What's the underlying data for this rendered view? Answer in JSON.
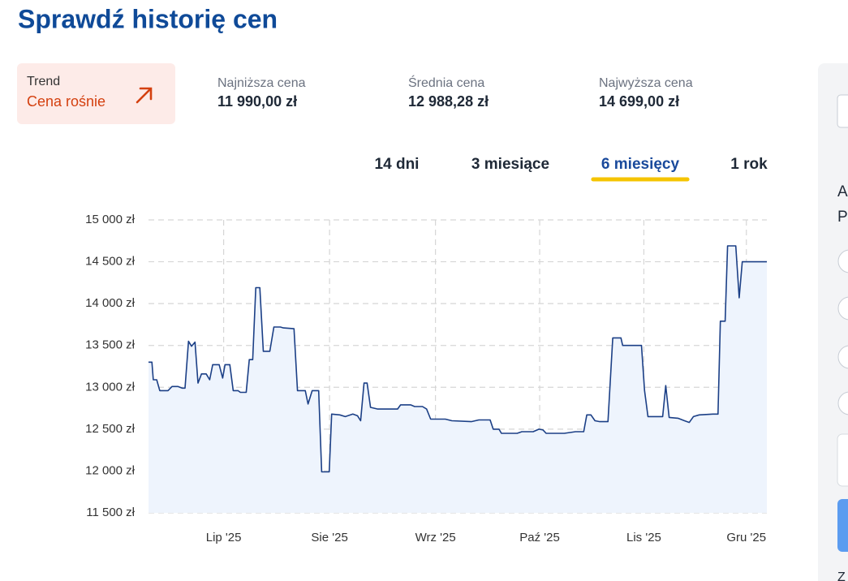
{
  "header": {
    "title": "Sprawdź historię cen"
  },
  "trend": {
    "label": "Trend",
    "value": "Cena rośnie"
  },
  "stats": [
    {
      "label": "Najniższa cena",
      "value": "11 990,00 zł"
    },
    {
      "label": "Średnia cena",
      "value": "12 988,28 zł"
    },
    {
      "label": "Najwyższa cena",
      "value": "14 699,00 zł"
    }
  ],
  "tabs": [
    "14 dni",
    "3 miesiące",
    "6 miesięcy",
    "1 rok"
  ],
  "active_tab": 2,
  "chart_data": {
    "type": "line",
    "color": "#1b3f86",
    "area_color": "#eef4fd",
    "grid": true,
    "x": [
      0,
      1,
      1.4,
      2.4,
      3.3,
      5.7,
      6.9,
      8.6,
      9.8,
      10.7,
      11.7,
      12.6,
      13.6,
      14.5,
      15.5,
      16.9,
      17.9,
      18.8,
      20.7,
      21.7,
      22.4,
      23.8,
      24.8,
      26.2,
      26.9,
      28.6,
      29.5,
      30.5,
      31.4,
      32.6,
      33.6,
      35.5,
      36.7,
      38.6,
      39.5,
      42.6,
      43.6,
      45.9,
      46.7,
      47.9,
      49.8,
      50.7,
      52.9,
      53.6,
      56,
      57.6,
      59.8,
      61.2,
      62.1,
      63.1,
      64,
      65,
      67.1,
      68.6,
      72.9,
      73.8,
      76.7,
      77.9,
      80.2,
      81.4,
      82.6,
      86.9,
      88.8,
      94.5,
      96.7,
      100,
      100.9,
      102.6,
      103.3,
      107.9,
      109.3,
      112.6,
      114.3,
      115.5,
      116.4,
      121.7,
      125,
      127.4,
      128.3,
      129.5,
      130.7,
      132.1,
      134.5,
      135.9,
      138.3,
      138.8,
      144.3,
      145.2,
      146.2,
      150.5,
      151.4,
      152.4,
      155,
      156.9,
      158.3,
      159.5,
      161.2,
      165.2,
      166.7,
      167.4,
      168.8,
      169.5,
      171.9,
      172.9,
      173.8,
      181
    ],
    "values": [
      13300,
      13300,
      13090,
      13090,
      12960,
      12960,
      13010,
      13010,
      12990,
      12990,
      13550,
      13490,
      13540,
      13050,
      13160,
      13160,
      13090,
      13270,
      13270,
      13110,
      13270,
      13270,
      12960,
      12960,
      12940,
      12940,
      13330,
      13330,
      14190,
      14190,
      13430,
      13430,
      13720,
      13720,
      13710,
      13700,
      12960,
      12960,
      12800,
      12960,
      12960,
      11990,
      11990,
      12680,
      12670,
      12650,
      12680,
      12660,
      12600,
      13050,
      13050,
      12760,
      12740,
      12740,
      12740,
      12790,
      12790,
      12770,
      12770,
      12740,
      12620,
      12620,
      12600,
      12590,
      12610,
      12610,
      12500,
      12500,
      12450,
      12450,
      12470,
      12470,
      12500,
      12490,
      12450,
      12450,
      12470,
      12470,
      12670,
      12670,
      12600,
      12590,
      12590,
      13590,
      13590,
      13500,
      13500,
      12960,
      12650,
      12650,
      13020,
      12640,
      12630,
      12600,
      12580,
      12650,
      12670,
      12680,
      12680,
      13790,
      13790,
      14690,
      14690,
      14070,
      14500,
      14500
    ],
    "xlim": [
      0,
      181
    ],
    "xticks": [
      {
        "value": 22,
        "label": "Lip '25"
      },
      {
        "value": 53,
        "label": "Sie '25"
      },
      {
        "value": 84,
        "label": "Wrz '25"
      },
      {
        "value": 114.5,
        "label": "Paź '25"
      },
      {
        "value": 145,
        "label": "Lis '25"
      },
      {
        "value": 175,
        "label": "Gru '25"
      }
    ],
    "ylim": [
      11500,
      15000
    ],
    "yticks": [
      {
        "value": 11500,
        "label": "11 500 zł"
      },
      {
        "value": 12000,
        "label": "12 000 zł"
      },
      {
        "value": 12500,
        "label": "12 500 zł"
      },
      {
        "value": 13000,
        "label": "13 000 zł"
      },
      {
        "value": 13500,
        "label": "13 500 zł"
      },
      {
        "value": 14000,
        "label": "14 000 zł"
      },
      {
        "value": 14500,
        "label": "14 500 zł"
      },
      {
        "value": 15000,
        "label": "15 000 zł"
      }
    ]
  },
  "sidebar": {
    "texts": [
      "A",
      "P"
    ],
    "footer": "Z"
  }
}
